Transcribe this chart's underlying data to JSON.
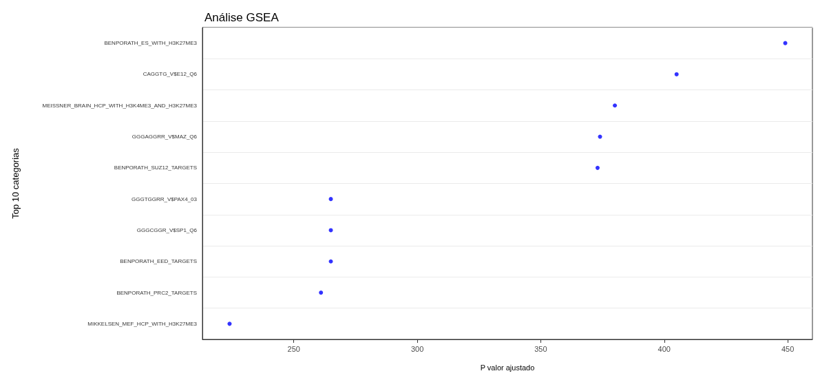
{
  "chart_data": {
    "type": "scatter",
    "title": "Análise GSEA",
    "xlabel": "P valor ajustado",
    "ylabel": "Top 10 categorias",
    "categories": [
      "BENPORATH_ES_WITH_H3K27ME3",
      "CAGGTG_V$E12_Q6",
      "MEISSNER_BRAIN_HCP_WITH_H3K4ME3_AND_H3K27ME3",
      "GGGAGGRR_V$MAZ_Q6",
      "BENPORATH_SUZ12_TARGETS",
      "GGGTGGRR_V$PAX4_03",
      "GGGCGGR_V$SP1_Q6",
      "BENPORATH_EED_TARGETS",
      "BENPORATH_PRC2_TARGETS",
      "MIKKELSEN_MEF_HCP_WITH_H3K27ME3"
    ],
    "values": [
      449,
      405,
      380,
      374,
      373,
      265,
      265,
      265,
      261,
      224
    ],
    "color": "#0000ff",
    "orientation": "horizontal",
    "marker": "circle",
    "xlim": [
      213,
      460
    ],
    "xticks": [
      250,
      300,
      350,
      400,
      450
    ],
    "grid": "y"
  }
}
